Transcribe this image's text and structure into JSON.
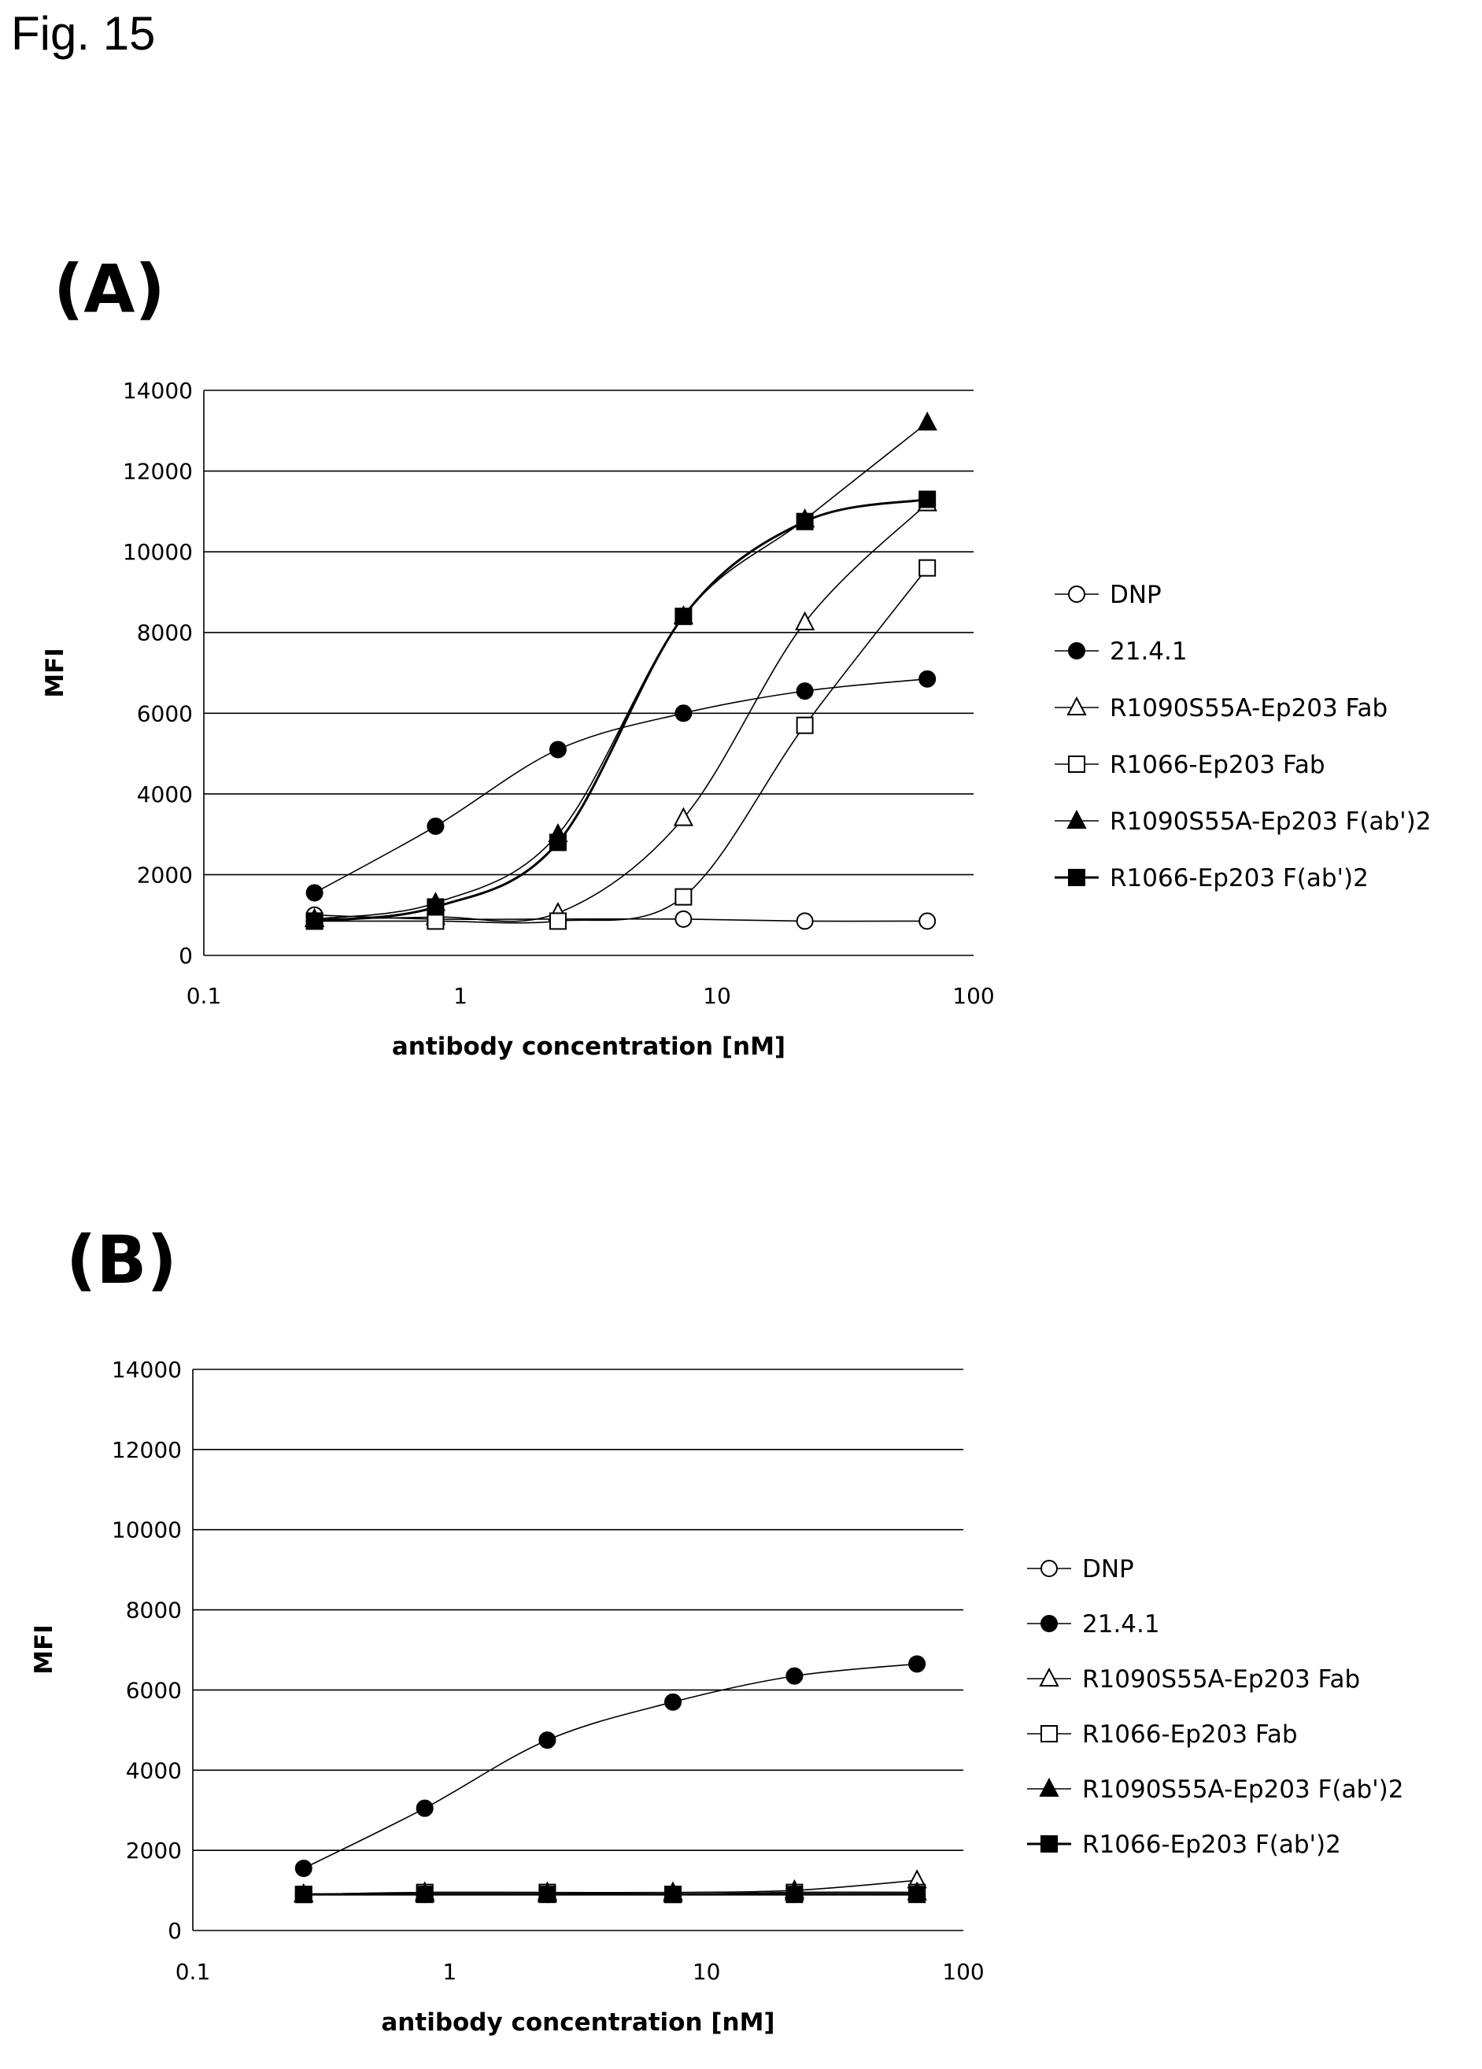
{
  "figure_title": "Fig. 15",
  "legend_entries": [
    {
      "label": "DNP",
      "marker": "circle-open"
    },
    {
      "label": "21.4.1",
      "marker": "circle-filled"
    },
    {
      "label": "R1090S55A-Ep203 Fab",
      "marker": "triangle-open"
    },
    {
      "label": "R1066-Ep203 Fab",
      "marker": "square-open"
    },
    {
      "label": "R1090S55A-Ep203 F(ab')2",
      "marker": "triangle-filled"
    },
    {
      "label": "R1066-Ep203 F(ab')2",
      "marker": "square-filled"
    }
  ],
  "chart_data": [
    {
      "type": "line",
      "panel": "(A)",
      "xlabel": "antibody concentration [nM]",
      "ylabel": "MFI",
      "xscale": "log",
      "xlim": [
        0.1,
        100
      ],
      "ylim": [
        0,
        14000
      ],
      "x_ticks": [
        "0.1",
        "1",
        "10",
        "100"
      ],
      "y_ticks": [
        "0",
        "2000",
        "4000",
        "6000",
        "8000",
        "10000",
        "12000",
        "14000"
      ],
      "grid": "horizontal",
      "legend_position": "right",
      "x": [
        0.27,
        0.8,
        2.4,
        7.4,
        22,
        66
      ],
      "series": [
        {
          "name": "DNP",
          "values": [
            1000,
            900,
            900,
            900,
            850,
            850
          ]
        },
        {
          "name": "21.4.1",
          "values": [
            1550,
            3200,
            5100,
            6000,
            6550,
            6850
          ]
        },
        {
          "name": "R1090S55A-Ep203 Fab",
          "values": [
            900,
            950,
            1050,
            3400,
            8250,
            11200
          ]
        },
        {
          "name": "R1066-Ep203 Fab",
          "values": [
            850,
            850,
            850,
            1450,
            5700,
            9600
          ]
        },
        {
          "name": "R1090S55A-Ep203 F(ab')2",
          "values": [
            900,
            1300,
            3000,
            8400,
            10800,
            13200
          ]
        },
        {
          "name": "R1066-Ep203 F(ab')2",
          "values": [
            850,
            1200,
            2800,
            8400,
            10750,
            11300
          ]
        }
      ]
    },
    {
      "type": "line",
      "panel": "(B)",
      "xlabel": "antibody concentration [nM]",
      "ylabel": "MFI",
      "xscale": "log",
      "xlim": [
        0.1,
        100
      ],
      "ylim": [
        0,
        14000
      ],
      "x_ticks": [
        "0.1",
        "1",
        "10",
        "100"
      ],
      "y_ticks": [
        "0",
        "2000",
        "4000",
        "6000",
        "8000",
        "10000",
        "12000",
        "14000"
      ],
      "grid": "horizontal",
      "legend_position": "right",
      "x": [
        0.27,
        0.8,
        2.4,
        7.4,
        22,
        66
      ],
      "series": [
        {
          "name": "DNP",
          "values": [
            900,
            900,
            900,
            900,
            900,
            900
          ]
        },
        {
          "name": "21.4.1",
          "values": [
            1550,
            3050,
            4750,
            5700,
            6350,
            6650
          ]
        },
        {
          "name": "R1090S55A-Ep203 Fab",
          "values": [
            900,
            950,
            950,
            950,
            1000,
            1250
          ]
        },
        {
          "name": "R1066-Ep203 Fab",
          "values": [
            900,
            950,
            950,
            900,
            950,
            950
          ]
        },
        {
          "name": "R1090S55A-Ep203 F(ab')2",
          "values": [
            900,
            900,
            900,
            900,
            950,
            950
          ]
        },
        {
          "name": "R1066-Ep203 F(ab')2",
          "values": [
            900,
            900,
            900,
            900,
            900,
            900
          ]
        }
      ]
    }
  ]
}
